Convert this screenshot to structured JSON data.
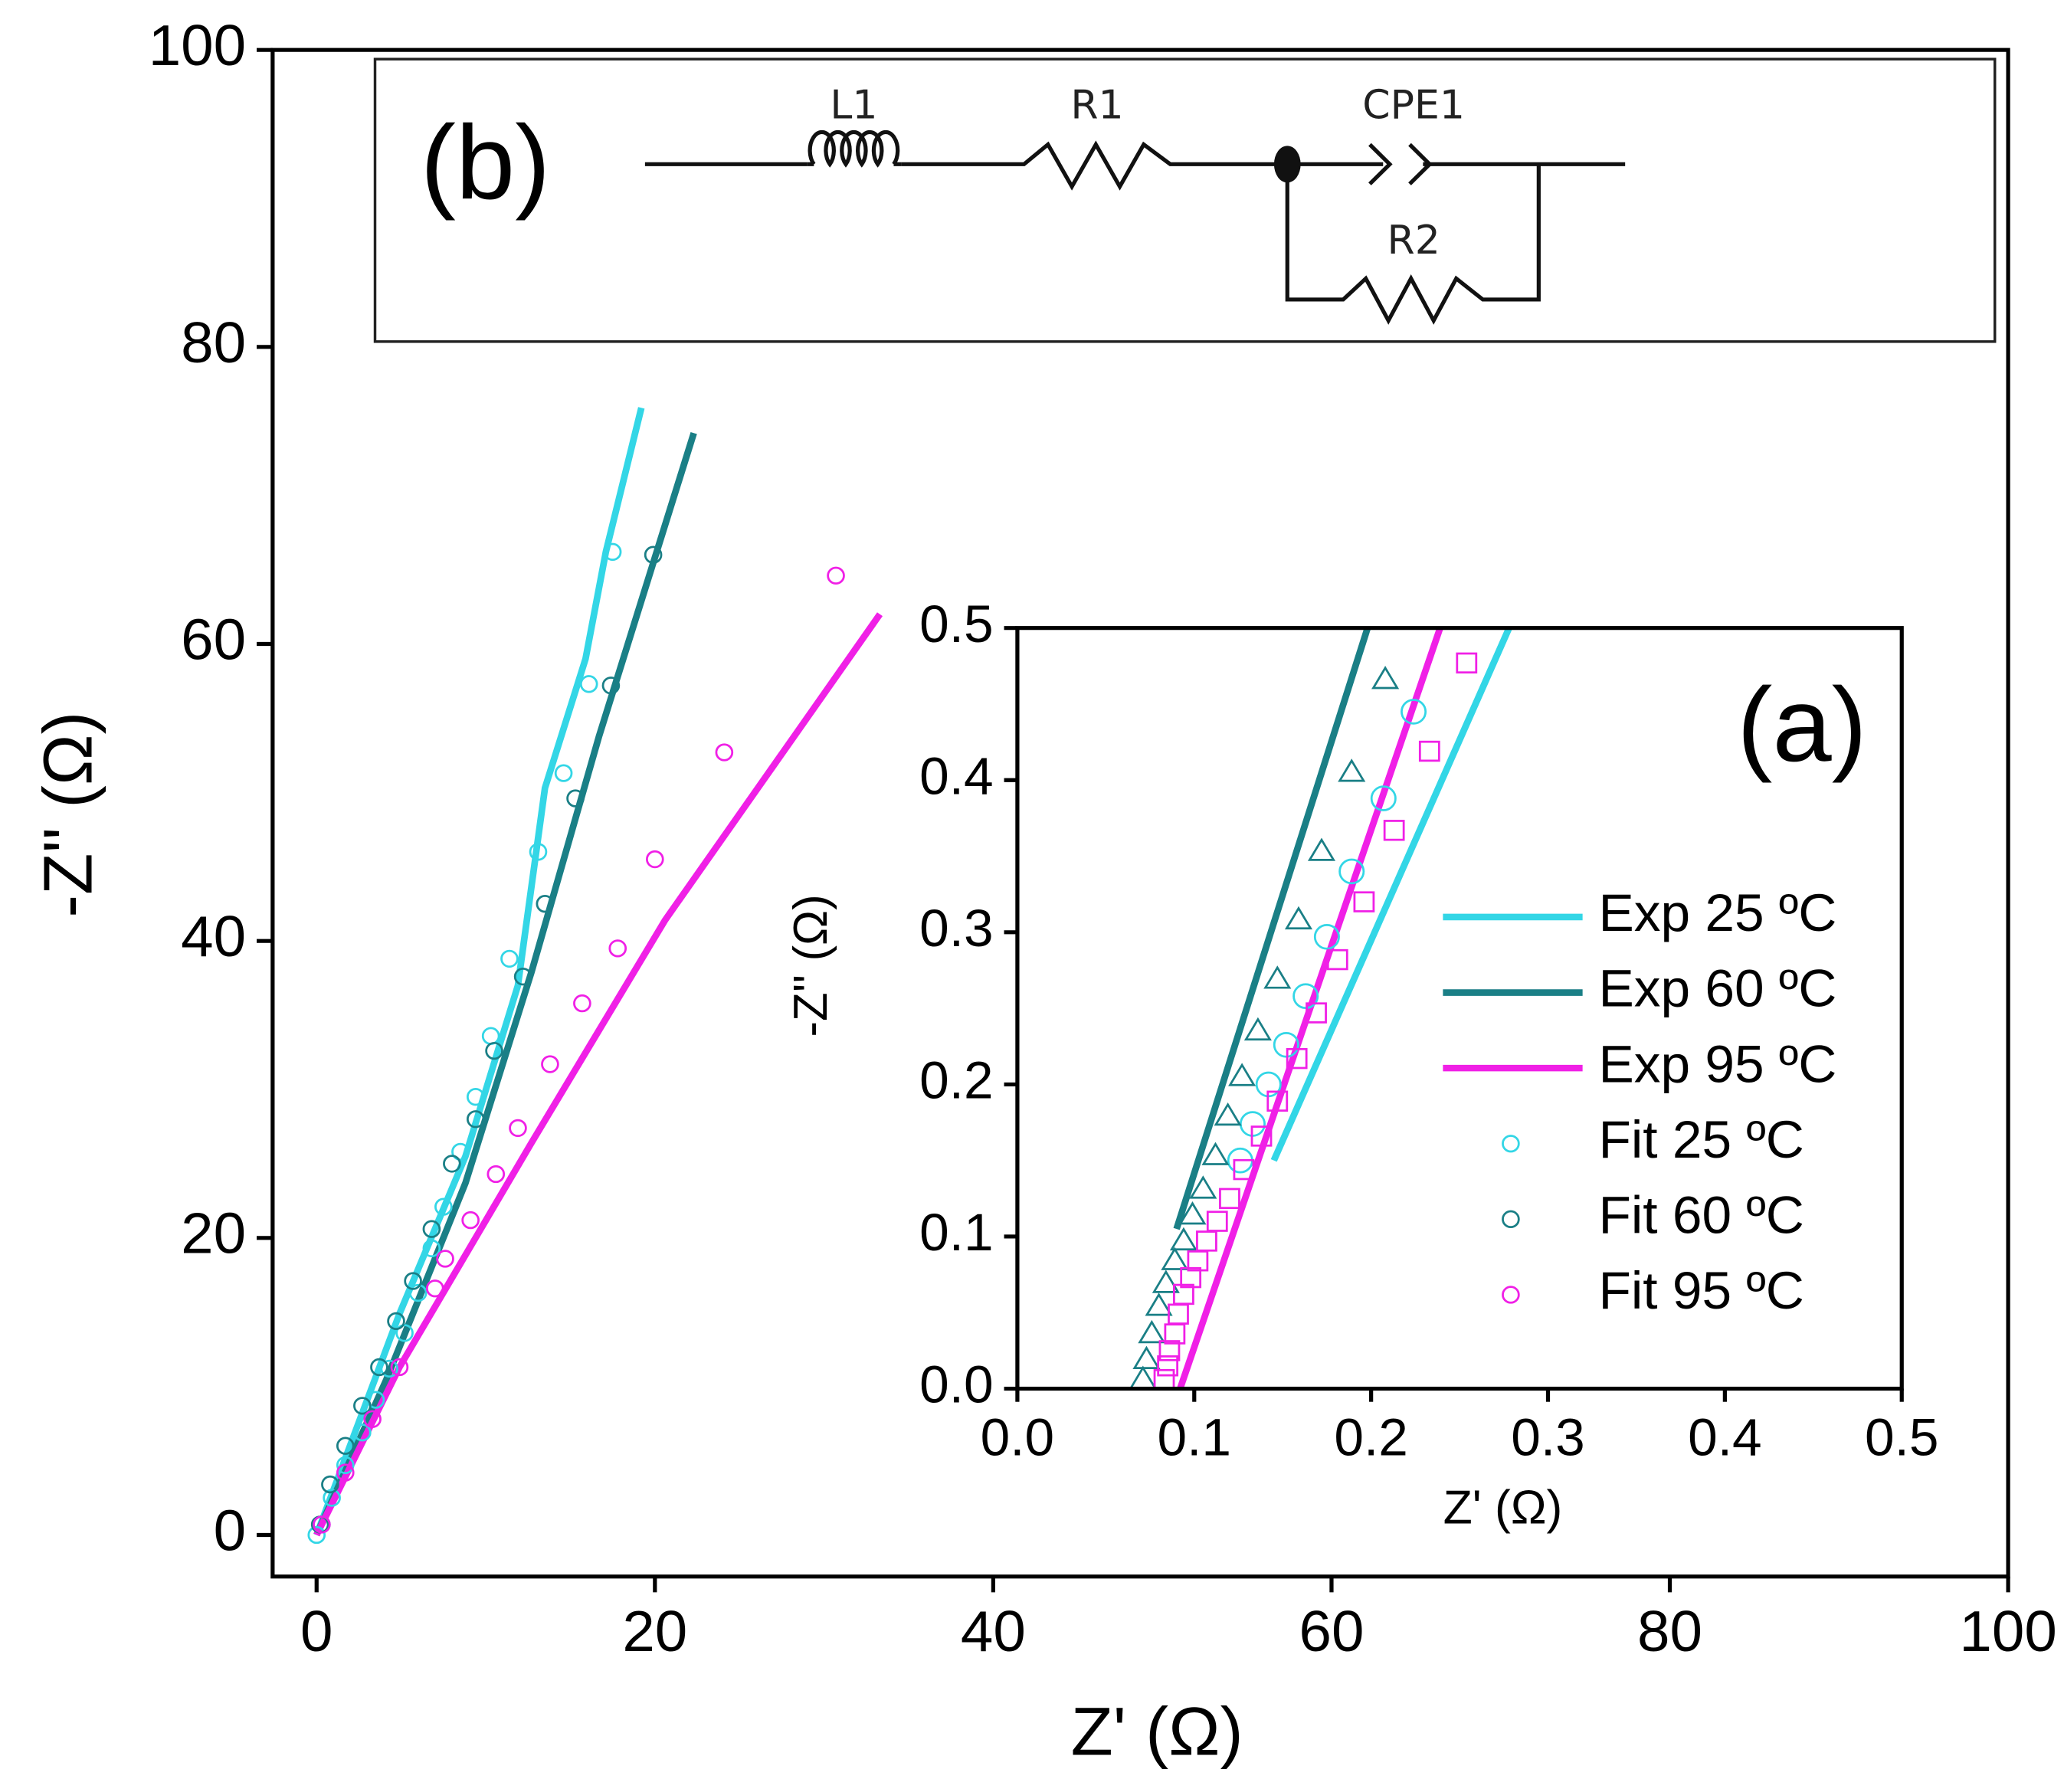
{
  "chart_data": [
    {
      "type": "line",
      "xlabel": "Z' (Ω)",
      "ylabel": "-Z'' (Ω)",
      "xlim": [
        -2.6,
        100
      ],
      "ylim": [
        -2.8,
        100
      ],
      "xticks": [
        0,
        20,
        40,
        60,
        80,
        100
      ],
      "yticks": [
        0,
        20,
        40,
        60,
        80,
        100
      ],
      "legend": "inset-right",
      "series": [
        {
          "name": "Exp 25 ºC",
          "color": "#33d6e6",
          "mode": "line",
          "x": [
            0,
            4.9,
            8.8,
            11.9,
            13.5,
            15.9,
            17.1,
            19.2
          ],
          "values": [
            0,
            14.9,
            25.5,
            37,
            50.3,
            59,
            66.2,
            75.9
          ]
        },
        {
          "name": "Exp 60 ºC",
          "color": "#1a7f86",
          "mode": "line",
          "x": [
            0,
            4.1,
            8.8,
            12.7,
            16.7,
            22.3
          ],
          "values": [
            0,
            10.4,
            23.7,
            37.9,
            53.8,
            74.2
          ]
        },
        {
          "name": "Exp 95 ºC",
          "color": "#f020e6",
          "mode": "line",
          "x": [
            0,
            4.9,
            12.7,
            20.6,
            33.3
          ],
          "values": [
            0,
            11.3,
            26.4,
            41.4,
            62
          ]
        },
        {
          "name": "Fit 25 ºC",
          "color": "#33d6e6",
          "mode": "markers",
          "marker": "circle",
          "x": [
            17.5,
            16.1,
            14.6,
            13.1,
            11.4,
            10.3,
            9.4,
            8.5,
            7.5,
            6.8,
            6,
            5.2,
            4.3,
            3.5,
            2.7,
            1.7,
            0.9,
            0.3,
            0
          ],
          "values": [
            66.2,
            57.3,
            51.3,
            46,
            38.8,
            33.6,
            29.5,
            25.8,
            22.1,
            19.3,
            16.3,
            13.6,
            11.2,
            9.1,
            6.9,
            4.7,
            2.5,
            0.7,
            0
          ]
        },
        {
          "name": "Fit 60 ºC",
          "color": "#1a7f86",
          "mode": "markers",
          "marker": "circle",
          "x": [
            19.9,
            17.4,
            15.3,
            13.5,
            12.2,
            10.5,
            9.4,
            8,
            6.8,
            5.7,
            4.7,
            3.7,
            2.7,
            1.7,
            0.8,
            0.2
          ],
          "values": [
            66,
            57.2,
            49.6,
            42.5,
            37.6,
            32.6,
            28,
            25,
            20.6,
            17.1,
            14.4,
            11.3,
            8.7,
            6,
            3.4,
            0.7
          ]
        },
        {
          "name": "Fit 95 ºC",
          "color": "#f020e6",
          "mode": "markers",
          "marker": "circle",
          "x": [
            30.7,
            24.1,
            20,
            17.8,
            15.7,
            13.8,
            11.9,
            10.6,
            9.1,
            7.6,
            7,
            4.9,
            3.3,
            1.7,
            0.3
          ],
          "values": [
            64.6,
            52.7,
            45.5,
            39.5,
            35.8,
            31.7,
            27.4,
            24.3,
            21.2,
            18.6,
            16.6,
            11.3,
            7.8,
            4.2,
            0.7
          ]
        }
      ]
    },
    {
      "type": "line",
      "annotation": "(a)",
      "xlabel": "Z' (Ω)",
      "ylabel": "-Z'' (Ω)",
      "xlim": [
        0,
        0.5
      ],
      "ylim": [
        0,
        0.5
      ],
      "xticks": [
        {
          "value": 0,
          "label": "0.0"
        },
        0.1,
        0.2,
        0.3,
        0.4,
        0.5
      ],
      "yticks": [
        {
          "value": 0,
          "label": "0.0"
        },
        0.1,
        0.2,
        0.3,
        0.4,
        0.5
      ],
      "series": [
        {
          "color": "#33d6e6",
          "mode": "line",
          "x": [
            0.145,
            0.278
          ],
          "values": [
            0.15,
            0.5
          ]
        },
        {
          "color": "#1a7f86",
          "mode": "line",
          "x": [
            0.09,
            0.198
          ],
          "values": [
            0.105,
            0.5
          ]
        },
        {
          "color": "#f020e6",
          "mode": "line",
          "x": [
            0.092,
            0.239
          ],
          "values": [
            0,
            0.5
          ]
        },
        {
          "color": "#33d6e6",
          "mode": "markers",
          "marker": "circle",
          "x": [
            0.224,
            0.207,
            0.189,
            0.175,
            0.163,
            0.152,
            0.142,
            0.133,
            0.126
          ],
          "values": [
            0.445,
            0.388,
            0.34,
            0.297,
            0.258,
            0.226,
            0.2,
            0.174,
            0.15
          ]
        },
        {
          "color": "#1a7f86",
          "mode": "markers",
          "marker": "triangle",
          "x": [
            0.208,
            0.189,
            0.172,
            0.159,
            0.147,
            0.136,
            0.127,
            0.119,
            0.112,
            0.105,
            0.099,
            0.094,
            0.089,
            0.084,
            0.08,
            0.076,
            0.073,
            0.071
          ],
          "values": [
            0.466,
            0.405,
            0.353,
            0.308,
            0.269,
            0.235,
            0.205,
            0.179,
            0.153,
            0.131,
            0.114,
            0.097,
            0.084,
            0.069,
            0.054,
            0.036,
            0.019,
            0.006
          ]
        },
        {
          "color": "#f020e6",
          "mode": "markers",
          "marker": "square",
          "x": [
            0.254,
            0.233,
            0.213,
            0.196,
            0.181,
            0.169,
            0.158,
            0.147,
            0.138,
            0.128,
            0.12,
            0.113,
            0.107,
            0.102,
            0.098,
            0.094,
            0.091,
            0.089,
            0.086,
            0.085,
            0.083
          ],
          "values": [
            0.477,
            0.419,
            0.367,
            0.32,
            0.282,
            0.247,
            0.217,
            0.189,
            0.166,
            0.144,
            0.125,
            0.11,
            0.097,
            0.084,
            0.073,
            0.062,
            0.049,
            0.036,
            0.025,
            0.015,
            0.006
          ]
        }
      ]
    }
  ],
  "circuit": {
    "label": "(b)",
    "elements": [
      "L1",
      "R1",
      "CPE1",
      "R2"
    ]
  }
}
